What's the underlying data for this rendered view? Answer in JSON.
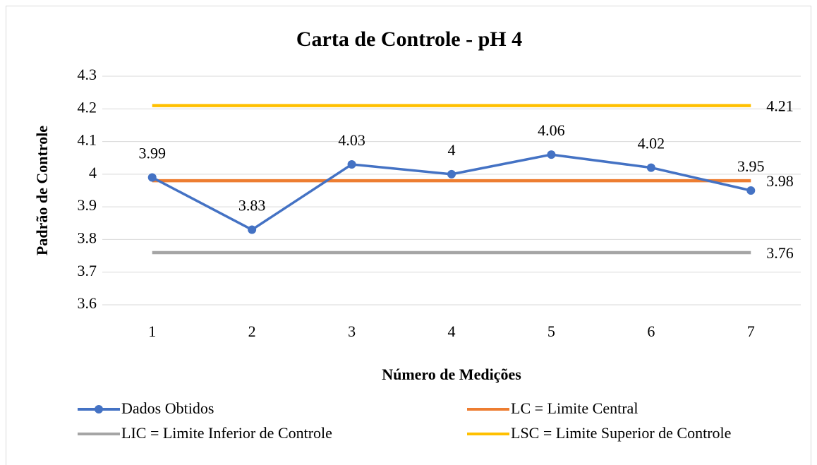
{
  "chart_data": {
    "type": "line",
    "title": "Carta de Controle - pH 4",
    "x_label": "Número de Medições",
    "y_label": "Padrão de Controle",
    "categories": [
      "1",
      "2",
      "3",
      "4",
      "5",
      "6",
      "7"
    ],
    "series": [
      {
        "name": "Dados Obtidos",
        "color": "#4472c4",
        "markers": true,
        "data_labels": "all",
        "values": [
          3.99,
          3.83,
          4.03,
          4,
          4.06,
          4.02,
          3.95
        ]
      },
      {
        "name": "LC = Limite Central",
        "color": "#ed7d31",
        "markers": false,
        "data_labels": "last",
        "values": [
          3.98,
          3.98,
          3.98,
          3.98,
          3.98,
          3.98,
          3.98
        ]
      },
      {
        "name": "LIC = Limite Inferior de Controle",
        "color": "#a5a5a5",
        "markers": false,
        "data_labels": "last",
        "values": [
          3.76,
          3.76,
          3.76,
          3.76,
          3.76,
          3.76,
          3.76
        ]
      },
      {
        "name": "LSC = Limite Superior de Controle",
        "color": "#ffc000",
        "markers": false,
        "data_labels": "last",
        "values": [
          4.21,
          4.21,
          4.21,
          4.21,
          4.21,
          4.21,
          4.21
        ]
      }
    ],
    "ylim": [
      3.6,
      4.3
    ],
    "yticks": [
      3.6,
      3.7,
      3.8,
      3.9,
      4,
      4.1,
      4.2,
      4.3
    ],
    "grid": true,
    "legend": "bottom"
  }
}
